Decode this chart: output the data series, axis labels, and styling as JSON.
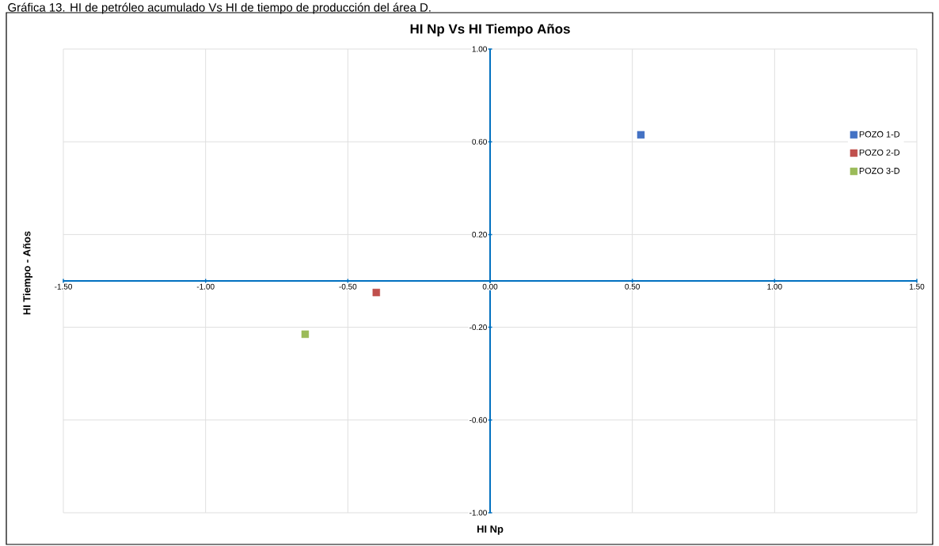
{
  "chart_data": {
    "type": "scatter",
    "title": "HI Np Vs HI Tiempo Años",
    "xlabel": "HI Np",
    "ylabel": "HI Tiempo - Años",
    "annotations": [
      "Gráfica 13. HI de petróleo acumulado Vs HI de tiempo de producción del área D."
    ],
    "series": [
      {
        "name": "POZO 1-D",
        "color": "#4472c4",
        "x": [
          0.53
        ],
        "values": [
          0.63
        ],
        "marker": "square"
      },
      {
        "name": "POZO 2-D",
        "color": "#c0504d",
        "x": [
          -0.4
        ],
        "values": [
          -0.05
        ],
        "marker": "square"
      },
      {
        "name": "POZO 3-D",
        "color": "#9bbb59",
        "x": [
          -0.65
        ],
        "values": [
          -0.23
        ],
        "marker": "square"
      }
    ],
    "xlim": [
      -1.5,
      1.5
    ],
    "ylim": [
      -1,
      1
    ],
    "xticks": [
      {
        "value": -1.5,
        "label": "-1.50"
      },
      {
        "value": -1,
        "label": "-1.00"
      },
      {
        "value": -0.5,
        "label": "-0.50"
      },
      {
        "value": 0,
        "label": "0.00"
      },
      {
        "value": 0.5,
        "label": "0.50"
      },
      {
        "value": 1,
        "label": "1.00"
      },
      {
        "value": 1.5,
        "label": "1.50"
      }
    ],
    "yticks": [
      {
        "value": -1,
        "label": "-1.00"
      },
      {
        "value": -0.6,
        "label": "-0.60"
      },
      {
        "value": -0.2,
        "label": "-0.20"
      },
      {
        "value": 0.2,
        "label": "0.20"
      },
      {
        "value": 0.6,
        "label": "0.60"
      },
      {
        "value": 1,
        "label": "1.00"
      }
    ],
    "grid": true,
    "legend": "right"
  }
}
